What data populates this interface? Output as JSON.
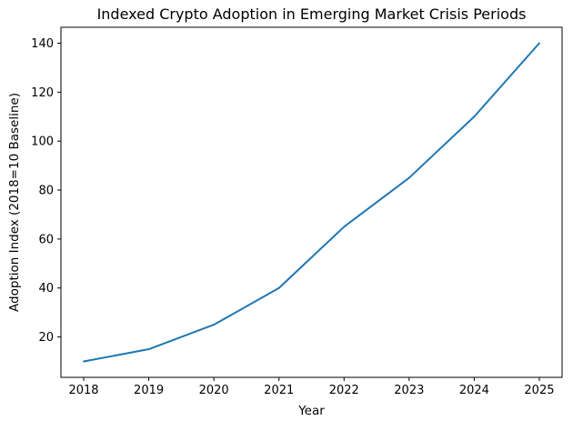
{
  "chart_data": {
    "type": "line",
    "title": "Indexed Crypto Adoption in Emerging Market Crisis Periods",
    "xlabel": "Year",
    "ylabel": "Adoption Index (2018=10 Baseline)",
    "x": [
      2018,
      2019,
      2020,
      2021,
      2022,
      2023,
      2024,
      2025
    ],
    "y": [
      10,
      15,
      25,
      40,
      65,
      85,
      110,
      140
    ],
    "xticks": [
      2018,
      2019,
      2020,
      2021,
      2022,
      2023,
      2024,
      2025
    ],
    "yticks": [
      20,
      40,
      60,
      80,
      100,
      120,
      140
    ],
    "xlim": [
      2017.65,
      2025.35
    ],
    "ylim": [
      3.5,
      146.5
    ],
    "line_color": "#1f77b4",
    "axis_color": "#000000",
    "grid": false,
    "legend_position": "none"
  }
}
